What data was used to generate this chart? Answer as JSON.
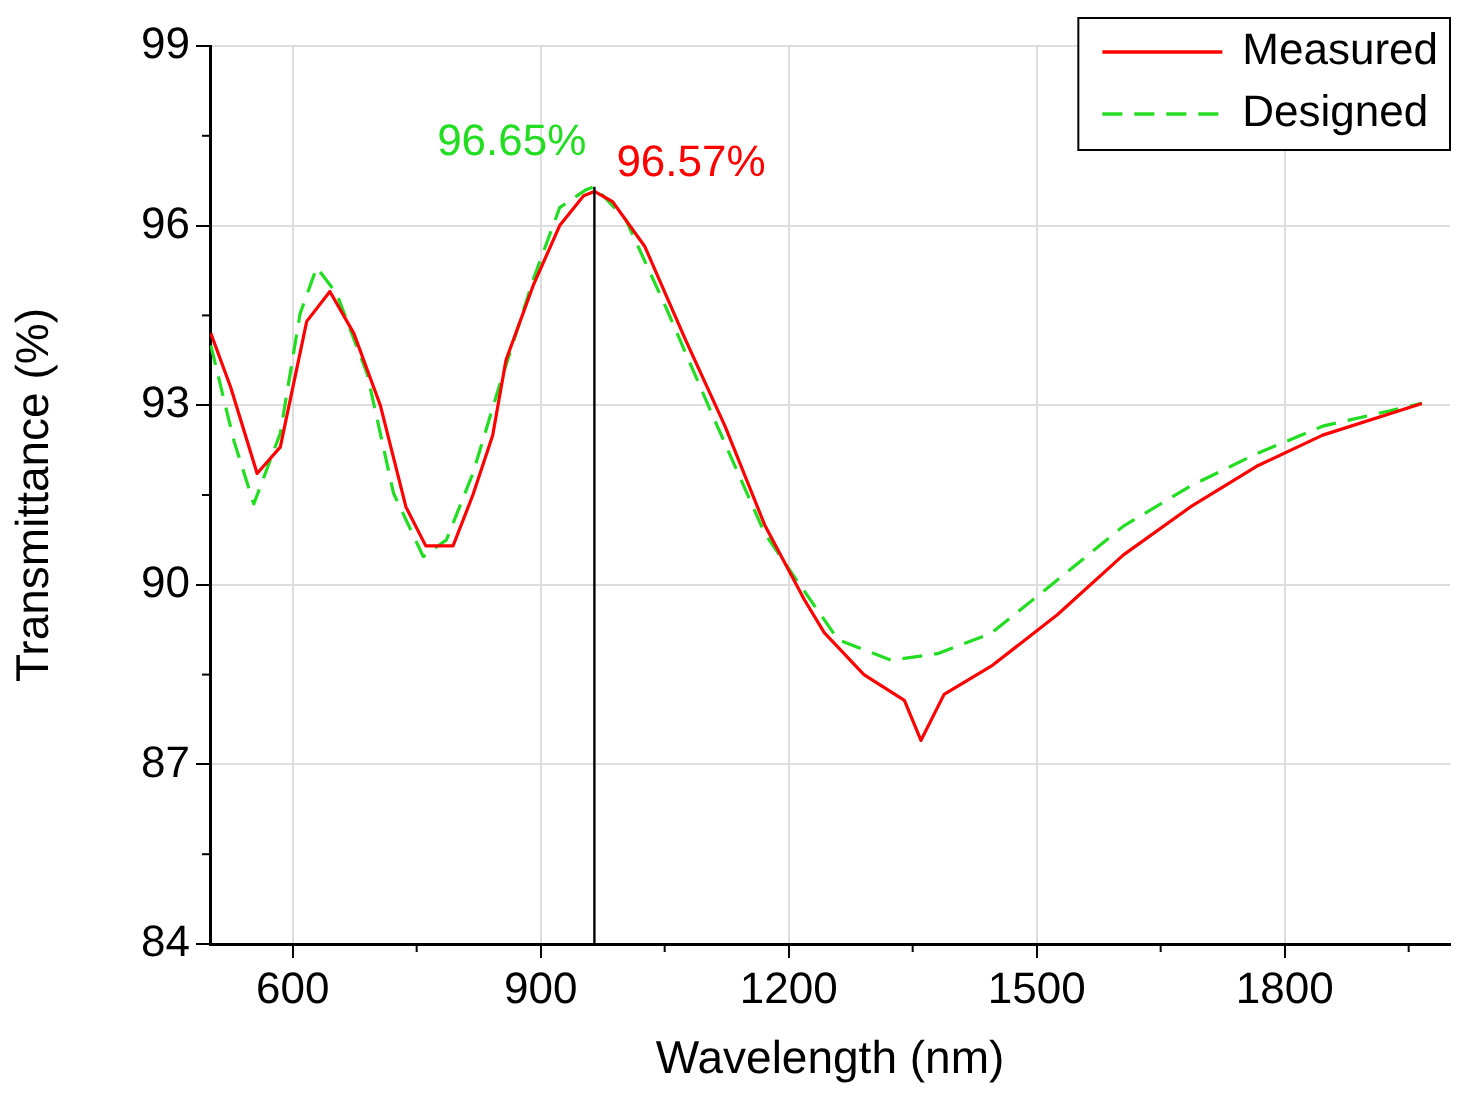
{
  "chart_data": {
    "type": "line",
    "xlabel": "Wavelength (nm)",
    "ylabel": "Transmittance (%)",
    "xlim": [
      500,
      2000
    ],
    "xticks": [
      600,
      900,
      1200,
      1500,
      1800
    ],
    "ylim": [
      84,
      99
    ],
    "yticks": [
      84,
      87,
      90,
      93,
      96,
      99
    ],
    "grid": true,
    "legend": "top right",
    "marker": "none",
    "series": [
      {
        "name": "Measured",
        "color": "#ff0000",
        "line_style": "solid",
        "x": [
          501,
          525,
          557,
          585,
          617,
          645,
          674,
          706,
          737,
          761,
          794,
          818,
          842,
          858,
          891,
          923,
          952,
          965,
          987,
          1026,
          1075,
          1123,
          1171,
          1219,
          1243,
          1291,
          1340,
          1360,
          1388,
          1445,
          1525,
          1605,
          1686,
          1766,
          1846,
          1966
        ],
        "values": [
          94.2,
          93.3,
          91.86,
          92.3,
          94.4,
          94.9,
          94.2,
          93.0,
          91.3,
          90.65,
          90.65,
          91.5,
          92.5,
          93.75,
          95.0,
          96.0,
          96.5,
          96.57,
          96.4,
          95.65,
          94.1,
          92.65,
          91.0,
          89.75,
          89.2,
          88.5,
          88.07,
          87.4,
          88.17,
          88.64,
          89.5,
          90.5,
          91.3,
          91.98,
          92.5,
          93.03
        ]
      },
      {
        "name": "Designed",
        "color": "#22dd22",
        "line_style": "dashed",
        "x": [
          501,
          529,
          553,
          585,
          609,
          629,
          653,
          690,
          722,
          758,
          786,
          818,
          850,
          891,
          923,
          955,
          965,
          1003,
          1051,
          1107,
          1171,
          1204,
          1260,
          1324,
          1380,
          1445,
          1525,
          1605,
          1686,
          1766,
          1846,
          1966
        ],
        "values": [
          94.0,
          92.4,
          91.35,
          92.53,
          94.53,
          95.3,
          94.87,
          93.53,
          91.53,
          90.47,
          90.75,
          91.86,
          93.32,
          95.1,
          96.3,
          96.6,
          96.65,
          96.1,
          94.65,
          92.86,
          90.86,
          90.19,
          89.08,
          88.74,
          88.85,
          89.19,
          90.08,
          90.98,
          91.65,
          92.19,
          92.65,
          93.03
        ]
      }
    ],
    "ref_lines": [
      {
        "axis": "x",
        "value": 965,
        "color": "#000000",
        "line_style": "solid"
      }
    ],
    "annotations": [
      {
        "text": "96.57%",
        "x": 965,
        "y": 96.57
      },
      {
        "text": "96.65%",
        "x": 965,
        "y": 96.65
      }
    ]
  }
}
